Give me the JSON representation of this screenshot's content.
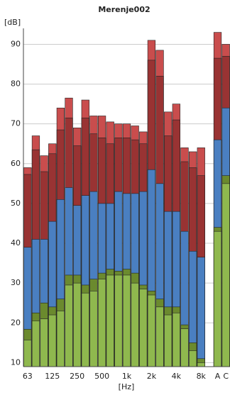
{
  "chart_data": {
    "type": "bar",
    "title": "Merenje002",
    "y_label": "[dB]",
    "x_label": "[Hz]",
    "categories": [
      "63",
      null,
      null,
      "125",
      null,
      null,
      "250",
      null,
      null,
      "500",
      null,
      null,
      "1k",
      null,
      null,
      "2k",
      null,
      null,
      "4k",
      null,
      null,
      "8k",
      null,
      "A",
      "C"
    ],
    "series": [
      {
        "color": "#c94d4d",
        "values": [
          59,
          67,
          62,
          65,
          74,
          76.5,
          69,
          76,
          72,
          72,
          70.5,
          70,
          70,
          69.5,
          68,
          91,
          88.5,
          73,
          75,
          64,
          63,
          64,
          null,
          93,
          90
        ]
      },
      {
        "color": "#993333",
        "values": [
          57.3,
          63.5,
          58,
          62.5,
          68.5,
          71.5,
          64.5,
          71.5,
          67.5,
          66.5,
          65,
          66.5,
          66.5,
          66,
          65,
          86,
          82,
          67,
          71,
          60.5,
          59,
          57,
          null,
          86.5,
          87
        ]
      },
      {
        "color": "#4a7fc1",
        "values": [
          39,
          41,
          41,
          45.5,
          51,
          54,
          49.5,
          52,
          53,
          50,
          50,
          53,
          52.5,
          52.5,
          53,
          58.5,
          55,
          48,
          48,
          43,
          38,
          36.5,
          null,
          66,
          74
        ]
      },
      {
        "color": "#6b8a2e",
        "values": [
          18.4,
          22.5,
          25,
          24,
          26,
          32,
          32,
          29.5,
          31,
          32.5,
          33.5,
          33,
          33.5,
          32.5,
          29.5,
          28,
          26,
          24,
          24,
          19.5,
          15,
          11,
          null,
          44,
          57
        ]
      },
      {
        "color": "#8fb84e",
        "values": [
          15.7,
          20.5,
          21,
          22,
          23,
          29.5,
          30,
          27.5,
          28,
          31,
          32,
          32,
          32,
          30,
          28.5,
          27,
          24,
          22,
          22.5,
          18.5,
          13,
          10,
          null,
          43,
          55
        ]
      }
    ],
    "ylim": [
      9,
      94
    ],
    "yticks": [
      10,
      20,
      30,
      40,
      50,
      60,
      70,
      80,
      90
    ],
    "grid": true
  }
}
